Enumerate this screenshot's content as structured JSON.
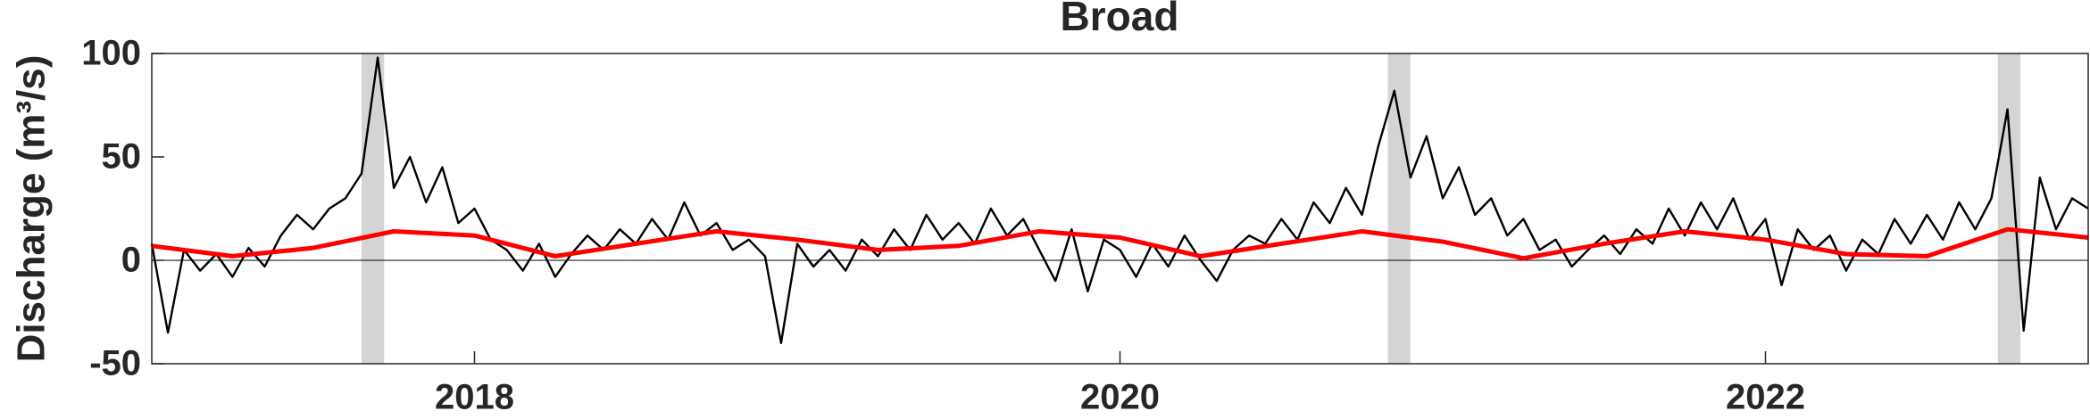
{
  "chart_data": {
    "type": "line",
    "title": "Broad",
    "ylabel": "Discharge (m³/s)",
    "xlim": [
      2017,
      2023
    ],
    "xticks": [
      2018,
      2020,
      2022
    ],
    "ylim": [
      -50,
      100
    ],
    "yticks": [
      -50,
      0,
      50,
      100
    ],
    "zero_line": 0,
    "shaded_spans": [
      [
        2017.65,
        2017.72
      ],
      [
        2020.83,
        2020.9
      ],
      [
        2022.72,
        2022.79
      ]
    ],
    "shade_color": "#d4d4d4",
    "series": [
      {
        "color": "#000000",
        "x": [
          2017,
          2017.05,
          2017.1,
          2017.15,
          2017.2,
          2017.25,
          2017.3,
          2017.35,
          2017.4,
          2017.45,
          2017.5,
          2017.55,
          2017.6,
          2017.65,
          2017.7,
          2017.75,
          2017.8,
          2017.85,
          2017.9,
          2017.95,
          2018,
          2018.05,
          2018.1,
          2018.15,
          2018.2,
          2018.25,
          2018.3,
          2018.35,
          2018.4,
          2018.45,
          2018.5,
          2018.55,
          2018.6,
          2018.65,
          2018.7,
          2018.75,
          2018.8,
          2018.85,
          2018.9,
          2018.95,
          2019,
          2019.05,
          2019.1,
          2019.15,
          2019.2,
          2019.25,
          2019.3,
          2019.35,
          2019.4,
          2019.45,
          2019.5,
          2019.55,
          2019.6,
          2019.65,
          2019.7,
          2019.75,
          2019.8,
          2019.85,
          2019.9,
          2019.95,
          2020,
          2020.05,
          2020.1,
          2020.15,
          2020.2,
          2020.25,
          2020.3,
          2020.35,
          2020.4,
          2020.45,
          2020.5,
          2020.55,
          2020.6,
          2020.65,
          2020.7,
          2020.75,
          2020.8,
          2020.85,
          2020.9,
          2020.95,
          2021,
          2021.05,
          2021.1,
          2021.15,
          2021.2,
          2021.25,
          2021.3,
          2021.35,
          2021.4,
          2021.45,
          2021.5,
          2021.55,
          2021.6,
          2021.65,
          2021.7,
          2021.75,
          2021.8,
          2021.85,
          2021.9,
          2021.95,
          2022,
          2022.05,
          2022.1,
          2022.15,
          2022.2,
          2022.25,
          2022.3,
          2022.35,
          2022.4,
          2022.45,
          2022.5,
          2022.55,
          2022.6,
          2022.65,
          2022.7,
          2022.75,
          2022.8,
          2022.85,
          2022.9,
          2022.95,
          2023
        ],
        "values": [
          8,
          -35,
          5,
          -5,
          3,
          -8,
          6,
          -3,
          12,
          22,
          15,
          25,
          30,
          42,
          98,
          35,
          50,
          28,
          45,
          18,
          25,
          10,
          5,
          -5,
          8,
          -8,
          3,
          12,
          5,
          15,
          8,
          20,
          10,
          28,
          12,
          18,
          5,
          10,
          2,
          -40,
          8,
          -3,
          5,
          -5,
          10,
          2,
          15,
          5,
          22,
          10,
          18,
          8,
          25,
          12,
          20,
          5,
          -10,
          15,
          -15,
          10,
          5,
          -8,
          8,
          -3,
          12,
          0,
          -10,
          5,
          12,
          8,
          20,
          10,
          28,
          18,
          35,
          22,
          55,
          82,
          40,
          60,
          30,
          45,
          22,
          30,
          12,
          20,
          5,
          10,
          -3,
          5,
          12,
          3,
          15,
          8,
          25,
          12,
          28,
          15,
          30,
          10,
          20,
          -12,
          15,
          5,
          12,
          -5,
          10,
          3,
          20,
          8,
          22,
          10,
          28,
          15,
          30,
          73,
          -34,
          40,
          15,
          30,
          25
        ]
      },
      {
        "color": "#ff0000",
        "x": [
          2017,
          2017.25,
          2017.5,
          2017.75,
          2018,
          2018.25,
          2018.5,
          2018.75,
          2019,
          2019.25,
          2019.5,
          2019.75,
          2020,
          2020.25,
          2020.5,
          2020.75,
          2021,
          2021.25,
          2021.5,
          2021.75,
          2022,
          2022.25,
          2022.5,
          2022.75,
          2023
        ],
        "values": [
          7,
          2,
          6,
          14,
          12,
          2,
          8,
          14,
          10,
          5,
          7,
          14,
          11,
          2,
          8,
          14,
          9,
          1,
          8,
          14,
          10,
          3,
          2,
          15,
          11
        ]
      }
    ]
  }
}
